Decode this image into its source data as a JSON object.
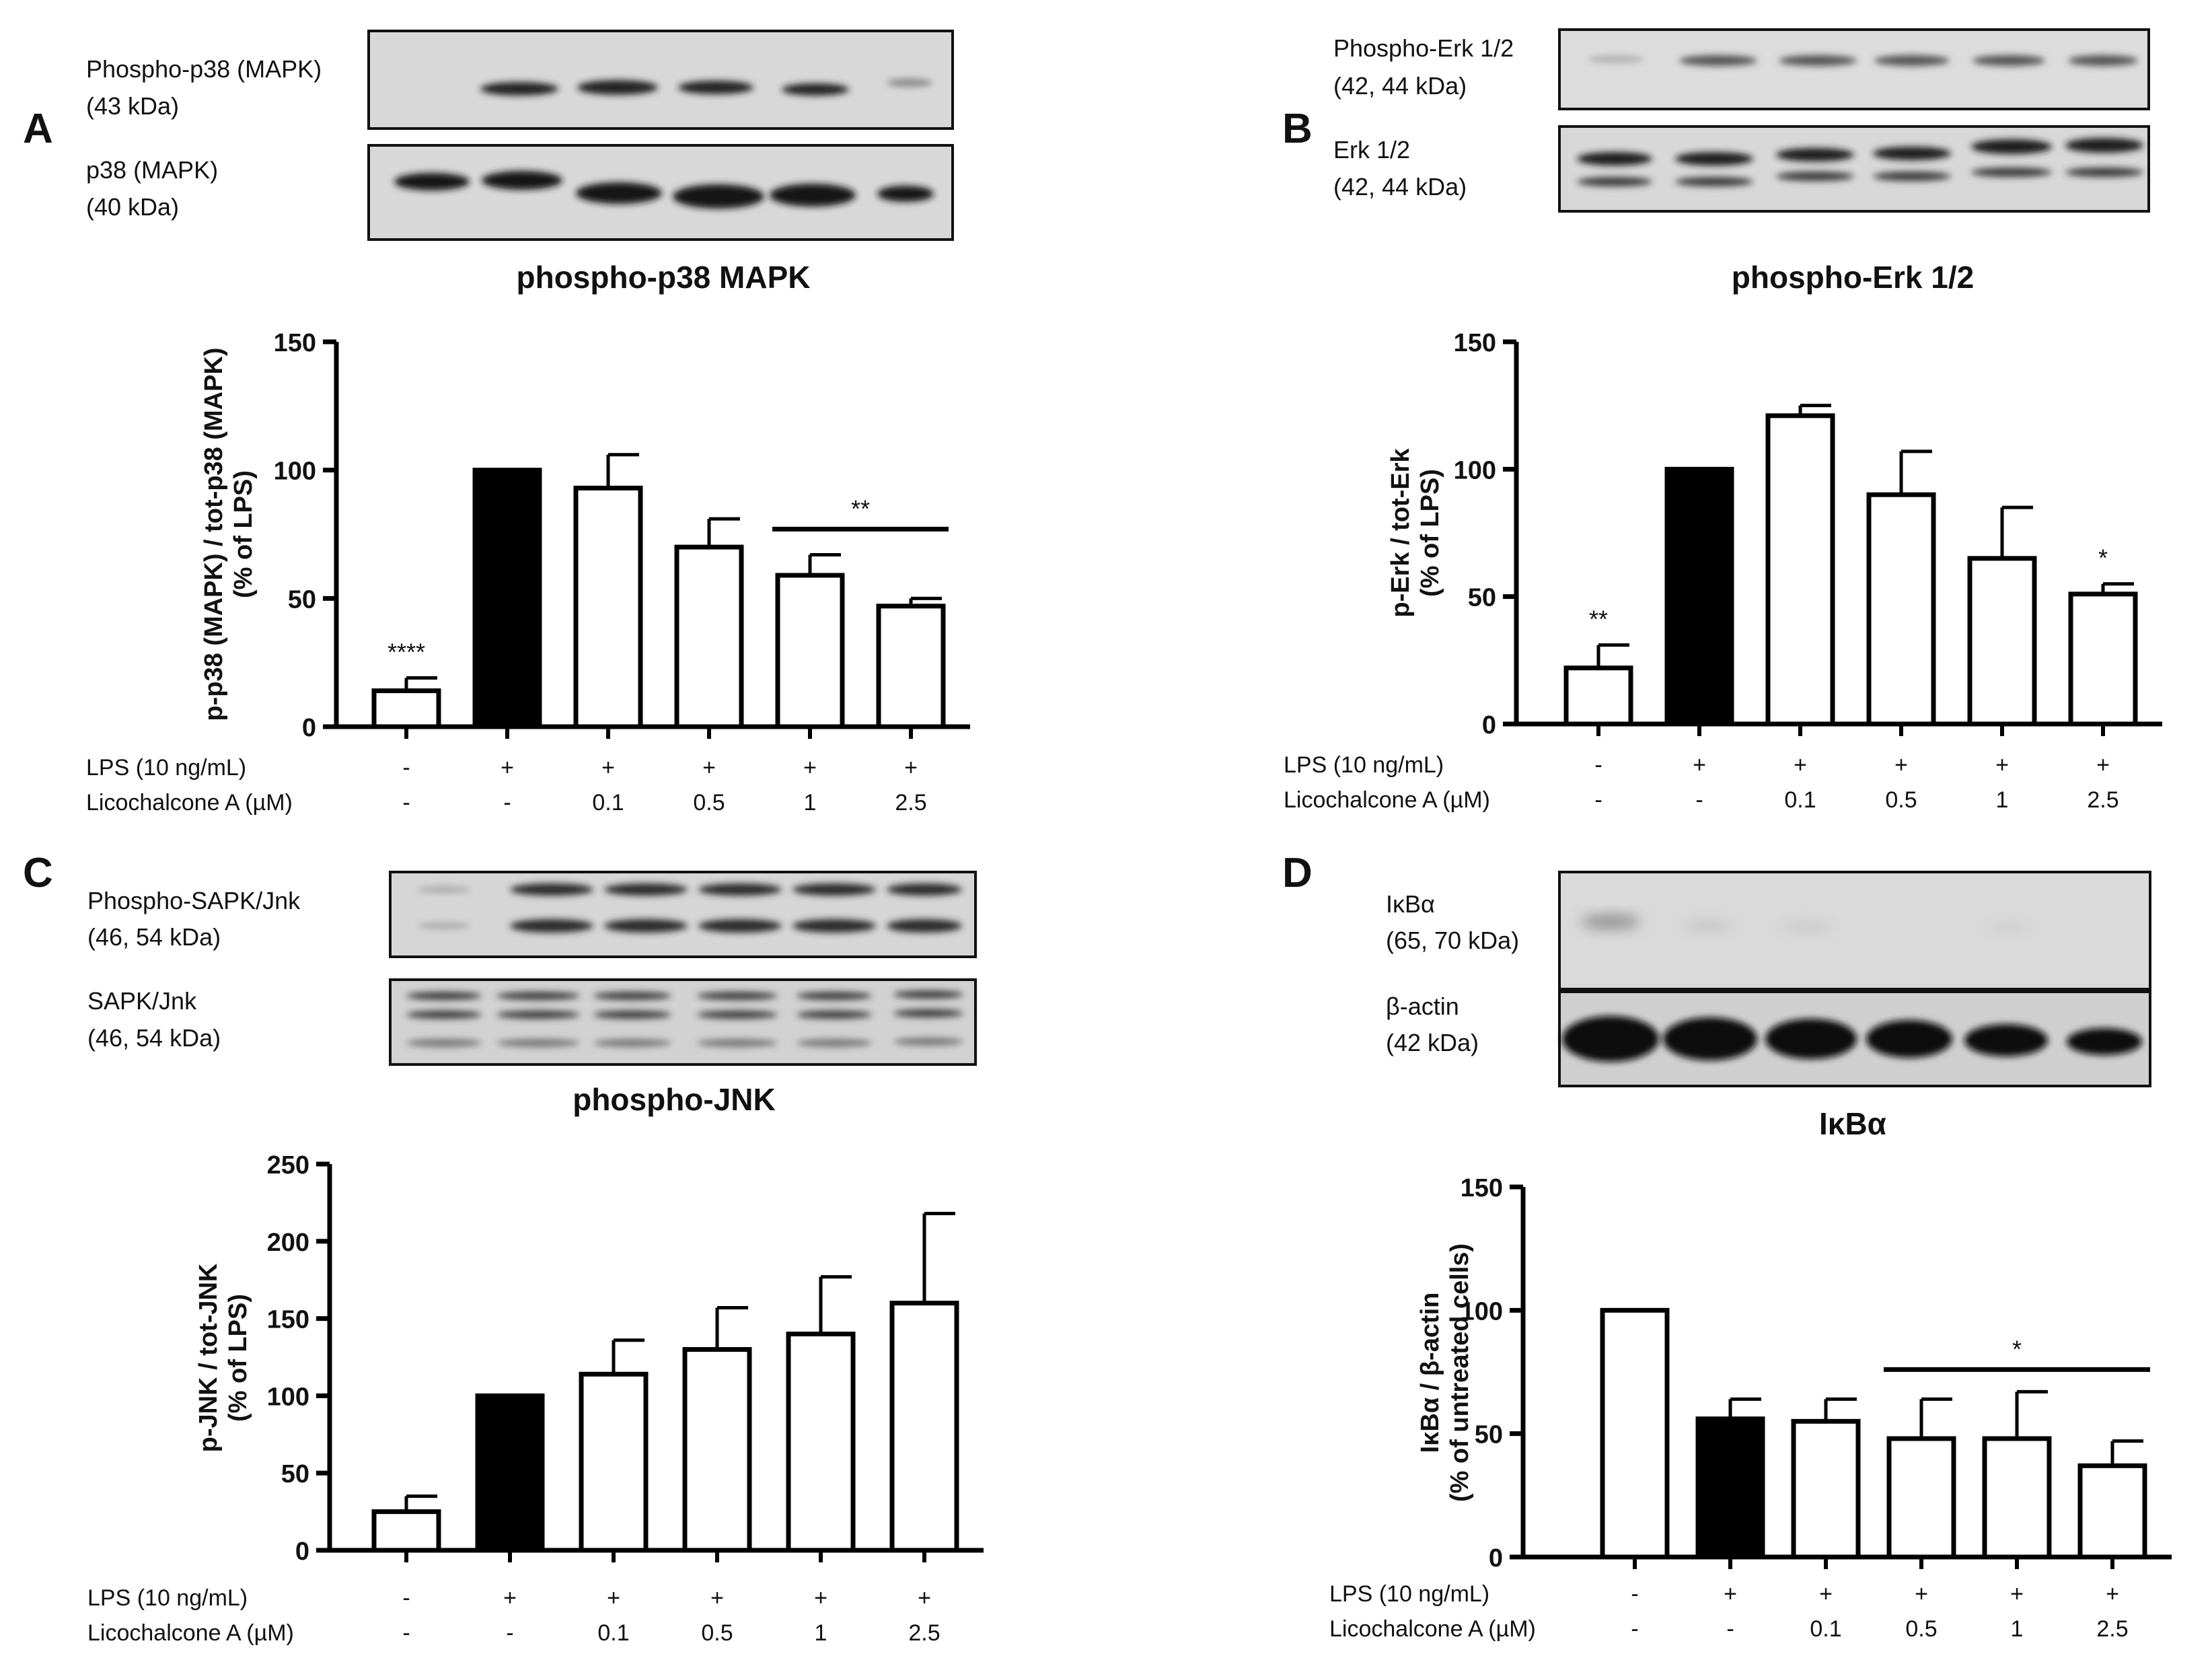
{
  "colors": {
    "black_bar": "#000000",
    "white_bar": "#ffffff",
    "blot_bg": "#d9d9d9",
    "band": "#1a1a1a"
  },
  "row_labels": {
    "lps": "LPS (10 ng/mL)",
    "lico": "Licochalcone A (µM)"
  },
  "treatments": {
    "lps": [
      "-",
      "+",
      "+",
      "+",
      "+",
      "+"
    ],
    "lico": [
      "-",
      "-",
      "0.1",
      "0.5",
      "1",
      "2.5"
    ]
  },
  "panels": [
    {
      "letter": "A",
      "blot_labels": [
        [
          "Phospho-p38 (MAPK)",
          "(43 kDa)"
        ],
        [
          "p38 (MAPK)",
          "(40 kDa)"
        ]
      ]
    },
    {
      "letter": "B",
      "blot_labels": [
        [
          "Phospho-Erk 1/2",
          "(42, 44 kDa)"
        ],
        [
          "Erk 1/2",
          "(42, 44 kDa)"
        ]
      ]
    },
    {
      "letter": "C",
      "blot_labels": [
        [
          "Phospho-SAPK/Jnk",
          "(46, 54 kDa)"
        ],
        [
          "SAPK/Jnk",
          "(46, 54 kDa)"
        ]
      ]
    },
    {
      "letter": "D",
      "blot_labels": [
        [
          "IκBα",
          "(65, 70 kDa)"
        ],
        [
          "β-actin",
          "(42 kDa)"
        ]
      ]
    }
  ],
  "chart_data": [
    {
      "type": "bar",
      "title": "phospho-p38 MAPK",
      "ylabel_lines": [
        "p-p38 (MAPK) / tot-p38 (MAPK)",
        "(% of LPS)"
      ],
      "ylim": [
        0,
        150
      ],
      "yticks": [
        0,
        50,
        100,
        150
      ],
      "values": [
        14,
        100,
        93,
        70,
        59,
        47
      ],
      "errors": [
        5,
        0,
        13,
        11,
        8,
        3
      ],
      "fill": [
        "white",
        "black",
        "white",
        "white",
        "white",
        "white"
      ],
      "annotations": [
        {
          "text": "****",
          "bar": 0
        },
        {
          "text": "**",
          "line_from": 4,
          "line_to": 5,
          "y": 77
        }
      ]
    },
    {
      "type": "bar",
      "title": "phospho-Erk 1/2",
      "ylabel_lines": [
        "p-Erk / tot-Erk",
        "(% of LPS)"
      ],
      "ylim": [
        0,
        150
      ],
      "yticks": [
        0,
        50,
        100,
        150
      ],
      "values": [
        22,
        100,
        121,
        90,
        65,
        51
      ],
      "errors": [
        9,
        0,
        4,
        17,
        20,
        4
      ],
      "fill": [
        "white",
        "black",
        "white",
        "white",
        "white",
        "white"
      ],
      "annotations": [
        {
          "text": "**",
          "bar": 0
        },
        {
          "text": "*",
          "bar": 5
        }
      ]
    },
    {
      "type": "bar",
      "title": "phospho-JNK",
      "ylabel_lines": [
        "p-JNK / tot-JNK",
        "(% of LPS)"
      ],
      "ylim": [
        0,
        250
      ],
      "yticks": [
        0,
        50,
        100,
        150,
        200,
        250
      ],
      "values": [
        25,
        100,
        114,
        130,
        140,
        160
      ],
      "errors": [
        10,
        0,
        22,
        27,
        37,
        58
      ],
      "fill": [
        "white",
        "black",
        "white",
        "white",
        "white",
        "white"
      ],
      "annotations": []
    },
    {
      "type": "bar",
      "title": "IκBα",
      "ylabel_lines": [
        "IκBα / β-actin",
        "(% of untreated cells)"
      ],
      "ylim": [
        0,
        150
      ],
      "yticks": [
        0,
        50,
        100,
        150
      ],
      "values": [
        100,
        56,
        55,
        48,
        48,
        37
      ],
      "errors": [
        0,
        8,
        9,
        16,
        19,
        10
      ],
      "fill": [
        "white",
        "black",
        "white",
        "white",
        "white",
        "white"
      ],
      "annotations": [
        {
          "text": "*",
          "line_from": 3,
          "line_to": 5,
          "y": 76
        }
      ]
    }
  ]
}
